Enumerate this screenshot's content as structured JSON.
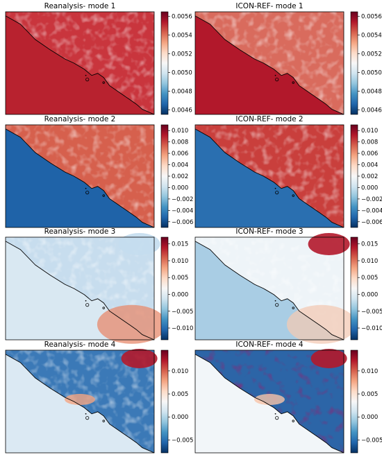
{
  "figure": {
    "colormap": "RdBu_r",
    "colors": {
      "low": "#053061",
      "mid": "#f7f7f7",
      "high": "#67001f",
      "coastline": "#000000"
    }
  },
  "chart_data": [
    {
      "type": "heatmap",
      "title": "Reanalysis- mode 1",
      "model": "Reanalysis",
      "mode": 1,
      "colorbar": {
        "range": [
          0.00455,
          0.00565
        ],
        "ticks": [
          0.0046,
          0.0048,
          0.005,
          0.0052,
          0.0054,
          0.0056
        ],
        "tick_labels": [
          "0.0046",
          "0.0048",
          "0.0050",
          "0.0052",
          "0.0054",
          "0.0056"
        ]
      }
    },
    {
      "type": "heatmap",
      "title": "ICON-REF- mode 1",
      "model": "ICON-REF",
      "mode": 1,
      "colorbar": {
        "range": [
          0.00455,
          0.00565
        ],
        "ticks": [
          0.0046,
          0.0048,
          0.005,
          0.0052,
          0.0054,
          0.0056
        ],
        "tick_labels": [
          "0.0046",
          "0.0048",
          "0.0050",
          "0.0052",
          "0.0054",
          "0.0056"
        ]
      }
    },
    {
      "type": "heatmap",
      "title": "Reanalysis- mode 2",
      "model": "Reanalysis",
      "mode": 2,
      "colorbar": {
        "range": [
          -0.007,
          0.011
        ],
        "ticks": [
          -0.006,
          -0.004,
          -0.002,
          0.0,
          0.002,
          0.004,
          0.006,
          0.008,
          0.01
        ],
        "tick_labels": [
          "−0.006",
          "−0.004",
          "−0.002",
          "0.000",
          "0.002",
          "0.004",
          "0.006",
          "0.008",
          "0.010"
        ]
      }
    },
    {
      "type": "heatmap",
      "title": "ICON-REF- mode 2",
      "model": "ICON-REF",
      "mode": 2,
      "colorbar": {
        "range": [
          -0.007,
          0.011
        ],
        "ticks": [
          -0.006,
          -0.004,
          -0.002,
          0.0,
          0.002,
          0.004,
          0.006,
          0.008,
          0.01
        ],
        "tick_labels": [
          "−0.006",
          "−0.004",
          "−0.002",
          "0.000",
          "0.002",
          "0.004",
          "0.006",
          "0.008",
          "0.010"
        ]
      }
    },
    {
      "type": "heatmap",
      "title": "Reanalysis- mode 3",
      "model": "Reanalysis",
      "mode": 3,
      "colorbar": {
        "range": [
          -0.0135,
          0.017
        ],
        "ticks": [
          -0.01,
          -0.005,
          0.0,
          0.005,
          0.01,
          0.015
        ],
        "tick_labels": [
          "−0.010",
          "−0.005",
          "0.000",
          "0.005",
          "0.010",
          "0.015"
        ]
      }
    },
    {
      "type": "heatmap",
      "title": "ICON-REF- mode 3",
      "model": "ICON-REF",
      "mode": 3,
      "colorbar": {
        "range": [
          -0.0135,
          0.017
        ],
        "ticks": [
          -0.01,
          -0.005,
          0.0,
          0.005,
          0.01,
          0.015
        ],
        "tick_labels": [
          "−0.010",
          "−0.005",
          "0.000",
          "0.005",
          "0.010",
          "0.015"
        ]
      }
    },
    {
      "type": "heatmap",
      "title": "Reanalysis- mode 4",
      "model": "Reanalysis",
      "mode": 4,
      "colorbar": {
        "range": [
          -0.0078,
          0.0145
        ],
        "ticks": [
          -0.005,
          0.0,
          0.005,
          0.01
        ],
        "tick_labels": [
          "−0.005",
          "0.000",
          "0.005",
          "0.010"
        ]
      }
    },
    {
      "type": "heatmap",
      "title": "ICON-REF- mode 4",
      "model": "ICON-REF",
      "mode": 4,
      "colorbar": {
        "range": [
          -0.0078,
          0.0145
        ],
        "ticks": [
          -0.005,
          0.0,
          0.005,
          0.01
        ],
        "tick_labels": [
          "−0.005",
          "0.000",
          "0.005",
          "0.010"
        ]
      }
    }
  ]
}
